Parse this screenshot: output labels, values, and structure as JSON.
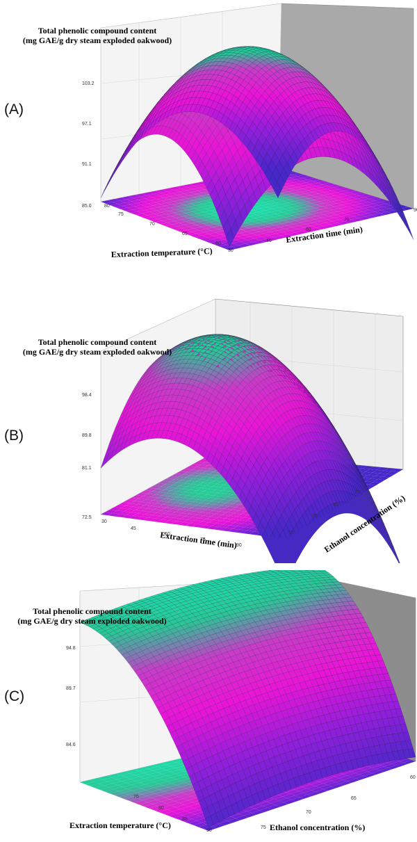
{
  "chart_data": [
    {
      "type": "surface",
      "panel_label": "(A)",
      "ztitle": [
        "Total phenolic compound content",
        "(mg GAE/g dry steam exploded oakwood)"
      ],
      "xlabel": "Extraction temperature (°C)",
      "ylabel": "Extraction time (min)",
      "x_ticks": [
        "60",
        "65",
        "70",
        "75",
        "80"
      ],
      "y_ticks": [
        "30",
        "45",
        "60",
        "75",
        "90"
      ],
      "z_ticks": [
        "85.0",
        "91.1",
        "97.1",
        "103.2"
      ],
      "xlim": [
        60,
        80
      ],
      "ylim": [
        30,
        90
      ],
      "zlim": [
        85.0,
        103.2
      ],
      "surface_peak": {
        "x": 70,
        "y": 60,
        "z": 106
      }
    },
    {
      "type": "surface",
      "panel_label": "(B)",
      "ztitle": [
        "Total phenolic compound content",
        "(mg GAE/g dry steam exploded oakwood)"
      ],
      "xlabel": "Extraction time (min)",
      "ylabel": "Ethanol concentration (%)",
      "x_ticks": [
        "30",
        "45",
        "60",
        "75",
        "90"
      ],
      "y_ticks": [
        "90",
        "85",
        "80",
        "75"
      ],
      "z_ticks": [
        "72.5",
        "81.1",
        "89.8",
        "98.4"
      ],
      "xlim": [
        30,
        90
      ],
      "ylim": [
        70,
        90
      ],
      "zlim": [
        72.5,
        98.4
      ]
    },
    {
      "type": "surface",
      "panel_label": "(C)",
      "ztitle": [
        "Total phenolic compound content",
        "(mg GAE/g dry steam exploded oakwood)"
      ],
      "xlabel": "Extraction temperature (°C)",
      "ylabel": "Ethanol concentration (%)",
      "x_ticks": [
        "90",
        "85",
        "80",
        "75"
      ],
      "y_ticks": [
        "75",
        "70",
        "65",
        "60"
      ],
      "z_ticks": [
        "84.6",
        "89.7",
        "94.8"
      ],
      "xlim": [
        70,
        90
      ],
      "ylim": [
        60,
        80
      ],
      "zlim": [
        79.5,
        99.9
      ]
    }
  ]
}
